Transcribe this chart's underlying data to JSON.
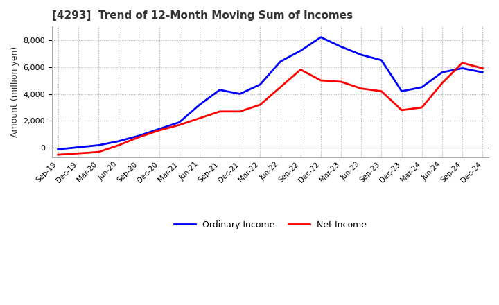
{
  "title": "[4293]  Trend of 12-Month Moving Sum of Incomes",
  "ylabel": "Amount (million yen)",
  "title_color": "#333333",
  "background_color": "#ffffff",
  "plot_background": "#ffffff",
  "grid_color": "#aaaaaa",
  "ylim": [
    -700,
    9000
  ],
  "yticks": [
    0,
    2000,
    4000,
    6000,
    8000
  ],
  "x_labels": [
    "Sep-19",
    "Dec-19",
    "Mar-20",
    "Jun-20",
    "Sep-20",
    "Dec-20",
    "Mar-21",
    "Jun-21",
    "Sep-21",
    "Dec-21",
    "Mar-22",
    "Jun-22",
    "Sep-22",
    "Dec-22",
    "Mar-23",
    "Jun-23",
    "Sep-23",
    "Dec-23",
    "Mar-24",
    "Jun-24",
    "Sep-24",
    "Dec-24"
  ],
  "ordinary_income": [
    -100,
    50,
    200,
    500,
    900,
    1400,
    1900,
    3200,
    4300,
    4000,
    4700,
    6400,
    7200,
    8200,
    7500,
    6900,
    6500,
    4200,
    4500,
    5600,
    5900,
    5600
  ],
  "net_income": [
    -500,
    -400,
    -300,
    200,
    800,
    1300,
    1700,
    2200,
    2700,
    2700,
    3200,
    4500,
    5800,
    5000,
    4900,
    4400,
    4200,
    2800,
    3000,
    4800,
    6300,
    5900
  ],
  "ordinary_income_color": "#0000ff",
  "net_income_color": "#ff0000",
  "line_width": 2.0
}
